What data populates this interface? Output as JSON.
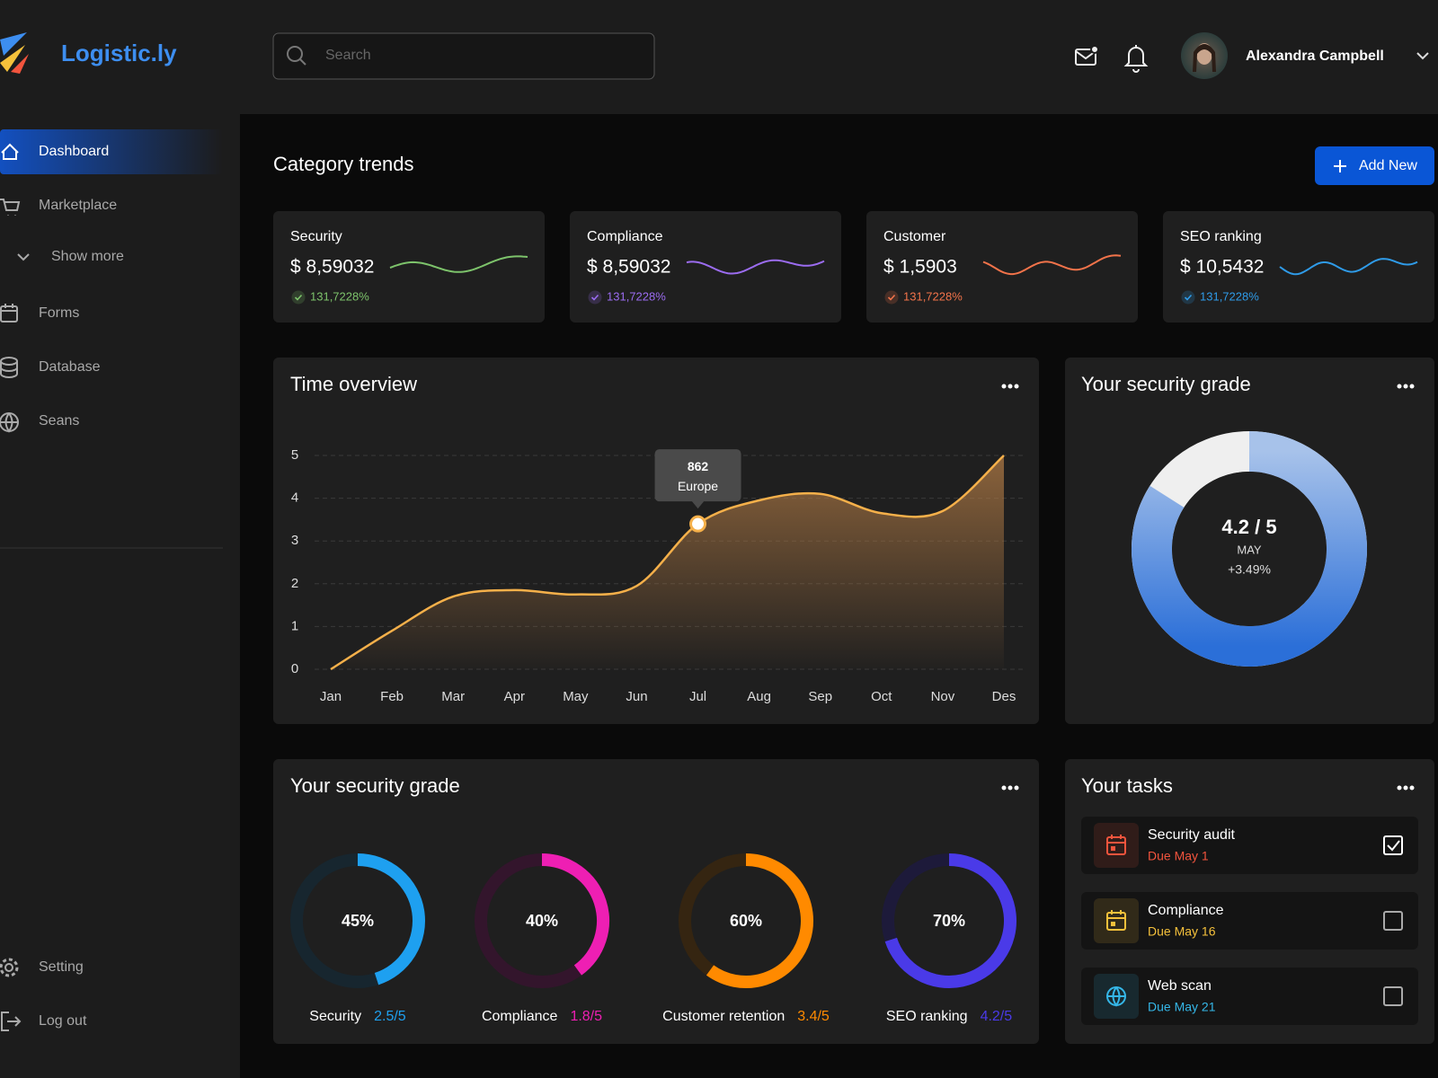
{
  "brand": "Logistic.ly",
  "search_placeholder": "Search",
  "user": {
    "name": "Alexandra Campbell"
  },
  "nav": [
    "Dashboard",
    "Marketplace",
    "Show more",
    "Forms",
    "Database",
    "Seans"
  ],
  "nav_bottom": [
    "Setting",
    "Log out"
  ],
  "section_title": "Category trends",
  "add_button": "Add New",
  "trend_cards": [
    {
      "title": "Security",
      "value": "$ 8,59032",
      "change": "131,7228%",
      "color": "#7dc36b"
    },
    {
      "title": "Compliance",
      "value": "$ 8,59032",
      "change": "131,7228%",
      "color": "#9b6cf0"
    },
    {
      "title": "Customer",
      "value": "$ 1,5903",
      "change": "131,7228%",
      "color": "#f2734a"
    },
    {
      "title": "SEO ranking",
      "value": "$ 10,5432",
      "change": "131,7228%",
      "color": "#2f9be8"
    }
  ],
  "time_overview": {
    "type": "line",
    "title": "Time overview",
    "categories": [
      "Jan",
      "Feb",
      "Mar",
      "Apr",
      "May",
      "Jun",
      "Jul",
      "Aug",
      "Sep",
      "Oct",
      "Nov",
      "Des"
    ],
    "values": [
      0,
      0.9,
      1.7,
      1.85,
      1.75,
      1.95,
      3.4,
      3.95,
      4.1,
      3.65,
      3.7,
      5
    ],
    "ylim": [
      0,
      5
    ],
    "yticks": [
      0,
      1,
      2,
      3,
      4,
      5
    ],
    "grid": true,
    "color": "#f5b04a",
    "tooltip": {
      "category": "Jul",
      "text": "862",
      "label": "Europe"
    }
  },
  "security_grade": {
    "type": "donut",
    "title": "Your security grade",
    "value": 4.2,
    "max": 5,
    "label": "4.2 / 5",
    "period": "MAY",
    "change": "+3.49%"
  },
  "grade_breakdown": {
    "type": "rings",
    "title": "Your security grade",
    "items": [
      {
        "name": "Security",
        "value": 45,
        "value_label": "45%",
        "score": "2.5/5",
        "color": "#1ea0f0",
        "track": "#17262f"
      },
      {
        "name": "Compliance",
        "value": 40,
        "value_label": "40%",
        "score": "1.8/5",
        "color": "#ee1fb3",
        "track": "#33152c"
      },
      {
        "name": "Customer retention",
        "value": 60,
        "value_label": "60%",
        "score": "3.4/5",
        "color": "#ff8a00",
        "track": "#352511"
      },
      {
        "name": "SEO ranking",
        "value": 70,
        "value_label": "70%",
        "score": "4.2/5",
        "color": "#4a3ae8",
        "track": "#1d1a3a"
      }
    ]
  },
  "tasks": {
    "title": "Your tasks",
    "items": [
      {
        "title": "Security audit",
        "due": "Due May 1",
        "done": true,
        "color": "#f2543d",
        "icon": "calendar"
      },
      {
        "title": "Compliance",
        "due": "Due May 16",
        "done": false,
        "color": "#f5c13b",
        "icon": "calendar"
      },
      {
        "title": "Web scan",
        "due": "Due May 21",
        "done": false,
        "color": "#35b7e8",
        "icon": "globe"
      }
    ]
  }
}
